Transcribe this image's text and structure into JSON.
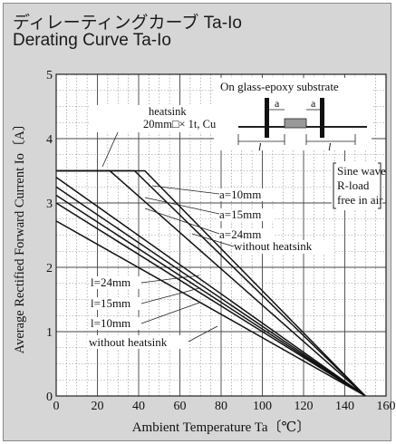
{
  "title_jp": "ディレーティングカーブ Ta-Io",
  "title_en": "Derating Curve Ta-Io",
  "chart_data": {
    "type": "line",
    "xlabel": "Ambient Temperature  Ta〔℃〕",
    "ylabel": "Average Rectified Forward Current  Io〔A〕",
    "xlim": [
      0,
      160
    ],
    "ylim": [
      0,
      5
    ],
    "xticks": [
      0,
      20,
      40,
      60,
      80,
      100,
      120,
      140,
      160
    ],
    "yticks": [
      0,
      1,
      2,
      3,
      4,
      5
    ],
    "grid": true,
    "series": [
      {
        "name": "a=10mm",
        "x": [
          0,
          43,
          150
        ],
        "y": [
          3.5,
          3.5,
          0
        ]
      },
      {
        "name": "a=15mm",
        "x": [
          0,
          38,
          150
        ],
        "y": [
          3.5,
          3.5,
          0
        ]
      },
      {
        "name": "a=24mm",
        "x": [
          0,
          26,
          150
        ],
        "y": [
          3.5,
          3.5,
          0
        ]
      },
      {
        "name": "without heatsink (a)",
        "x": [
          0,
          150
        ],
        "y": [
          3.4,
          0
        ]
      },
      {
        "name": "l=24mm",
        "x": [
          0,
          150
        ],
        "y": [
          3.25,
          0
        ]
      },
      {
        "name": "l=15mm",
        "x": [
          0,
          150
        ],
        "y": [
          3.12,
          0
        ]
      },
      {
        "name": "l=10mm",
        "x": [
          0,
          150
        ],
        "y": [
          3.0,
          0
        ]
      },
      {
        "name": "without heatsink (l)",
        "x": [
          0,
          150
        ],
        "y": [
          2.72,
          0
        ]
      }
    ],
    "annotations": {
      "inset_title": "On glass-epoxy substrate",
      "heatsink_line1": "heatsink",
      "heatsink_line2": "20mm□× 1t, Cu",
      "dim_a": "a",
      "dim_l": "l",
      "cond_1": "Sine wave",
      "cond_2": "R-load",
      "cond_3": "free in air",
      "a10": "a=10mm",
      "a15": "a=15mm",
      "a24": "a=24mm",
      "without_a": "without heatsink",
      "l24": "l=24mm",
      "l15": "l=15mm",
      "l10": "l=10mm",
      "without_l": "without heatsink"
    }
  }
}
